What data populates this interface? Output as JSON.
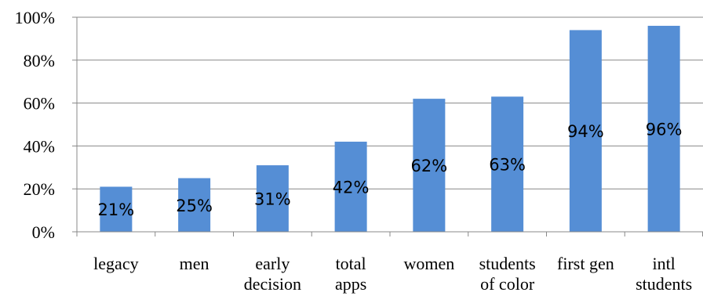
{
  "chart_data": {
    "type": "bar",
    "categories": [
      [
        "legacy"
      ],
      [
        "men"
      ],
      [
        "early",
        "decision"
      ],
      [
        "total",
        "apps"
      ],
      [
        "women"
      ],
      [
        "students",
        "of color"
      ],
      [
        "first gen"
      ],
      [
        "intl",
        "students"
      ]
    ],
    "values": [
      21,
      25,
      31,
      42,
      62,
      63,
      94,
      96
    ],
    "data_labels": [
      "21%",
      "25%",
      "31%",
      "42%",
      "62%",
      "63%",
      "94%",
      "96%"
    ],
    "ylim": [
      0,
      100
    ],
    "yticks": [
      0,
      20,
      40,
      60,
      80,
      100
    ],
    "ytick_labels": [
      "0%",
      "20%",
      "40%",
      "60%",
      "80%",
      "100%"
    ],
    "grid": "horizontal",
    "legend": "none",
    "bar_color": "#558ED5",
    "title": "",
    "xlabel": "",
    "ylabel": ""
  }
}
